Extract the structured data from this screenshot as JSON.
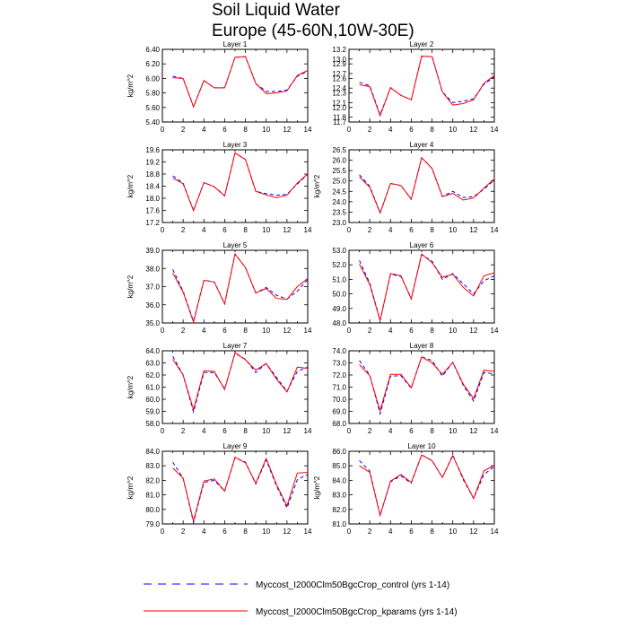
{
  "figure": {
    "title_line1": "Soil Liquid Water",
    "title_line2": "Europe (45-60N,10W-30E)"
  },
  "legend": [
    {
      "label": "Myccost_I2000Clm50BgcCrop_control (yrs 1-14)",
      "color": "#0000ff",
      "style": "dashed"
    },
    {
      "label": "Myccost_I2000Clm50BgcCrop_kparams (yrs 1-14)",
      "color": "#ff0000",
      "style": "solid"
    }
  ],
  "chart_data": [
    {
      "type": "line",
      "title": "Layer 1",
      "ylabel": "kg/m^2",
      "xlim": [
        0,
        14
      ],
      "ylim": [
        5.4,
        6.4
      ],
      "xticks": [
        "0",
        "2",
        "4",
        "6",
        "8",
        "10",
        "12",
        "14"
      ],
      "yticks": [
        "5.40",
        "5.60",
        "5.80",
        "6.00",
        "6.20",
        "6.40"
      ],
      "x": [
        1,
        2,
        3,
        4,
        5,
        6,
        7,
        8,
        9,
        10,
        11,
        12,
        13,
        14
      ],
      "series": [
        {
          "name": "Myccost_I2000Clm50BgcCrop_control (yrs 1-14)",
          "color": "#0000ff",
          "dash": true,
          "values": [
            6.03,
            6.0,
            5.61,
            5.97,
            5.87,
            5.87,
            6.29,
            6.3,
            5.93,
            5.82,
            5.82,
            5.84,
            6.03,
            6.1
          ]
        },
        {
          "name": "Myccost_I2000Clm50BgcCrop_kparams (yrs 1-14)",
          "color": "#ff0000",
          "dash": false,
          "values": [
            6.01,
            6.0,
            5.61,
            5.97,
            5.87,
            5.87,
            6.29,
            6.3,
            5.93,
            5.79,
            5.8,
            5.83,
            6.04,
            6.11
          ]
        }
      ]
    },
    {
      "type": "line",
      "title": "Layer 2",
      "ylabel": "",
      "xlim": [
        0,
        14
      ],
      "ylim": [
        11.7,
        13.2
      ],
      "xticks": [
        "0",
        "2",
        "4",
        "6",
        "8",
        "10",
        "12",
        "14"
      ],
      "yticks": [
        "11.7",
        "11.8",
        "12.0",
        "12.1",
        "12.3",
        "12.4",
        "12.6",
        "12.7",
        "12.9",
        "13.0",
        "13.2"
      ],
      "x": [
        1,
        2,
        3,
        4,
        5,
        6,
        7,
        8,
        9,
        10,
        11,
        12,
        13,
        14
      ],
      "series": [
        {
          "name": "Myccost_I2000Clm50BgcCrop_control (yrs 1-14)",
          "color": "#0000ff",
          "dash": true,
          "values": [
            12.52,
            12.45,
            11.85,
            12.41,
            12.25,
            12.16,
            13.06,
            13.05,
            12.32,
            12.1,
            12.13,
            12.18,
            12.48,
            12.63
          ]
        },
        {
          "name": "Myccost_I2000Clm50BgcCrop_kparams (yrs 1-14)",
          "color": "#ff0000",
          "dash": false,
          "values": [
            12.47,
            12.43,
            11.83,
            12.41,
            12.25,
            12.16,
            13.06,
            13.05,
            12.32,
            12.05,
            12.08,
            12.16,
            12.5,
            12.66
          ]
        }
      ]
    },
    {
      "type": "line",
      "title": "Layer 3",
      "ylabel": "kg/m^2",
      "xlim": [
        0,
        14
      ],
      "ylim": [
        17.2,
        19.6
      ],
      "xticks": [
        "0",
        "2",
        "4",
        "6",
        "8",
        "10",
        "12",
        "14"
      ],
      "yticks": [
        "17.2",
        "17.6",
        "18.0",
        "18.4",
        "18.8",
        "19.2",
        "19.6"
      ],
      "x": [
        1,
        2,
        3,
        4,
        5,
        6,
        7,
        8,
        9,
        10,
        11,
        12,
        13,
        14
      ],
      "series": [
        {
          "name": "Myccost_I2000Clm50BgcCrop_control (yrs 1-14)",
          "color": "#0000ff",
          "dash": true,
          "values": [
            18.74,
            18.5,
            17.6,
            18.52,
            18.38,
            18.08,
            19.5,
            19.28,
            18.23,
            18.15,
            18.1,
            18.13,
            18.47,
            18.79
          ]
        },
        {
          "name": "Myccost_I2000Clm50BgcCrop_kparams (yrs 1-14)",
          "color": "#ff0000",
          "dash": false,
          "values": [
            18.67,
            18.48,
            17.59,
            18.52,
            18.38,
            18.08,
            19.5,
            19.28,
            18.23,
            18.11,
            18.02,
            18.1,
            18.5,
            18.81
          ]
        }
      ]
    },
    {
      "type": "line",
      "title": "Layer 4",
      "ylabel": "kg/m^2",
      "xlim": [
        0,
        14
      ],
      "ylim": [
        23.0,
        26.5
      ],
      "xticks": [
        "0",
        "2",
        "4",
        "6",
        "8",
        "10",
        "12",
        "14"
      ],
      "yticks": [
        "23.0",
        "23.5",
        "24.0",
        "24.5",
        "25.0",
        "25.5",
        "26.0",
        "26.5"
      ],
      "x": [
        1,
        2,
        3,
        4,
        5,
        6,
        7,
        8,
        9,
        10,
        11,
        12,
        13,
        14
      ],
      "series": [
        {
          "name": "Myccost_I2000Clm50BgcCrop_control (yrs 1-14)",
          "color": "#0000ff",
          "dash": true,
          "values": [
            25.3,
            24.75,
            23.47,
            24.88,
            24.78,
            24.12,
            26.12,
            25.6,
            24.25,
            24.5,
            24.2,
            24.25,
            24.6,
            25.05
          ]
        },
        {
          "name": "Myccost_I2000Clm50BgcCrop_kparams (yrs 1-14)",
          "color": "#ff0000",
          "dash": false,
          "values": [
            25.2,
            24.7,
            23.46,
            24.88,
            24.78,
            24.12,
            26.12,
            25.6,
            24.25,
            24.4,
            24.08,
            24.18,
            24.65,
            25.1
          ]
        }
      ]
    },
    {
      "type": "line",
      "title": "Layer 5",
      "ylabel": "kg/m^2",
      "xlim": [
        0,
        14
      ],
      "ylim": [
        35.0,
        39.0
      ],
      "xticks": [
        "0",
        "2",
        "4",
        "6",
        "8",
        "10",
        "12",
        "14"
      ],
      "yticks": [
        "35.0",
        "36.0",
        "37.0",
        "38.0",
        "39.0"
      ],
      "x": [
        1,
        2,
        3,
        4,
        5,
        6,
        7,
        8,
        9,
        10,
        11,
        12,
        13,
        14
      ],
      "series": [
        {
          "name": "Myccost_I2000Clm50BgcCrop_control (yrs 1-14)",
          "color": "#0000ff",
          "dash": true,
          "values": [
            37.95,
            36.75,
            35.1,
            37.35,
            37.25,
            36.05,
            38.8,
            38.05,
            36.65,
            36.95,
            36.52,
            36.32,
            36.75,
            37.4
          ]
        },
        {
          "name": "Myccost_I2000Clm50BgcCrop_kparams (yrs 1-14)",
          "color": "#ff0000",
          "dash": false,
          "values": [
            37.75,
            36.7,
            35.05,
            37.35,
            37.25,
            36.05,
            38.8,
            38.05,
            36.65,
            36.9,
            36.35,
            36.3,
            37.0,
            37.45
          ]
        }
      ]
    },
    {
      "type": "line",
      "title": "Layer 6",
      "ylabel": "",
      "xlim": [
        0,
        14
      ],
      "ylim": [
        48.0,
        53.0
      ],
      "xticks": [
        "0",
        "2",
        "4",
        "6",
        "8",
        "10",
        "12",
        "14"
      ],
      "yticks": [
        "48.0",
        "49.0",
        "50.0",
        "51.0",
        "52.0",
        "53.0"
      ],
      "x": [
        1,
        2,
        3,
        4,
        5,
        6,
        7,
        8,
        9,
        10,
        11,
        12,
        13,
        14
      ],
      "series": [
        {
          "name": "Myccost_I2000Clm50BgcCrop_control (yrs 1-14)",
          "color": "#0000ff",
          "dash": true,
          "values": [
            52.3,
            50.75,
            48.2,
            51.35,
            51.2,
            49.7,
            52.7,
            52.25,
            51.0,
            51.4,
            50.7,
            50.0,
            50.9,
            51.25
          ]
        },
        {
          "name": "Myccost_I2000Clm50BgcCrop_kparams (yrs 1-14)",
          "color": "#ff0000",
          "dash": false,
          "values": [
            52.05,
            50.65,
            48.15,
            51.4,
            51.25,
            49.65,
            52.75,
            52.15,
            51.15,
            51.35,
            50.45,
            49.85,
            51.25,
            51.45
          ]
        }
      ]
    },
    {
      "type": "line",
      "title": "Layer 7",
      "ylabel": "kg/m^2",
      "xlim": [
        0,
        14
      ],
      "ylim": [
        58.0,
        64.0
      ],
      "xticks": [
        "0",
        "2",
        "4",
        "6",
        "8",
        "10",
        "12",
        "14"
      ],
      "yticks": [
        "58.0",
        "59.0",
        "60.0",
        "61.0",
        "62.0",
        "63.0",
        "64.0"
      ],
      "x": [
        1,
        2,
        3,
        4,
        5,
        6,
        7,
        8,
        9,
        10,
        11,
        12,
        13,
        14
      ],
      "series": [
        {
          "name": "Myccost_I2000Clm50BgcCrop_control (yrs 1-14)",
          "color": "#0000ff",
          "dash": true,
          "values": [
            63.55,
            62.0,
            58.95,
            62.2,
            62.2,
            60.85,
            63.8,
            63.3,
            62.2,
            62.95,
            61.8,
            60.65,
            62.3,
            62.65
          ]
        },
        {
          "name": "Myccost_I2000Clm50BgcCrop_kparams (yrs 1-14)",
          "color": "#ff0000",
          "dash": false,
          "values": [
            63.3,
            62.0,
            59.15,
            62.35,
            62.3,
            60.8,
            63.85,
            63.25,
            62.4,
            62.95,
            61.65,
            60.6,
            62.65,
            62.55
          ]
        }
      ]
    },
    {
      "type": "line",
      "title": "Layer 8",
      "ylabel": "",
      "xlim": [
        0,
        14
      ],
      "ylim": [
        68.0,
        74.0
      ],
      "xticks": [
        "0",
        "2",
        "4",
        "6",
        "8",
        "10",
        "12",
        "14"
      ],
      "yticks": [
        "68.0",
        "69.0",
        "70.0",
        "71.0",
        "72.0",
        "73.0",
        "74.0"
      ],
      "x": [
        1,
        2,
        3,
        4,
        5,
        6,
        7,
        8,
        9,
        10,
        11,
        12,
        13,
        14
      ],
      "series": [
        {
          "name": "Myccost_I2000Clm50BgcCrop_control (yrs 1-14)",
          "color": "#0000ff",
          "dash": true,
          "values": [
            73.2,
            72.0,
            68.8,
            71.9,
            71.95,
            70.9,
            73.5,
            73.2,
            71.9,
            73.05,
            71.15,
            69.85,
            72.2,
            72.1
          ]
        },
        {
          "name": "Myccost_I2000Clm50BgcCrop_kparams (yrs 1-14)",
          "color": "#ff0000",
          "dash": false,
          "values": [
            72.85,
            71.95,
            69.05,
            72.05,
            72.05,
            70.95,
            73.5,
            73.0,
            72.05,
            73.05,
            71.25,
            70.05,
            72.4,
            72.3
          ]
        }
      ]
    },
    {
      "type": "line",
      "title": "Layer 9",
      "ylabel": "kg/m^2",
      "xlim": [
        0,
        14
      ],
      "ylim": [
        79.0,
        84.0
      ],
      "xticks": [
        "0",
        "2",
        "4",
        "6",
        "8",
        "10",
        "12",
        "14"
      ],
      "yticks": [
        "79.0",
        "80.0",
        "81.0",
        "82.0",
        "83.0",
        "84.0"
      ],
      "x": [
        1,
        2,
        3,
        4,
        5,
        6,
        7,
        8,
        9,
        10,
        11,
        12,
        13,
        14
      ],
      "series": [
        {
          "name": "Myccost_I2000Clm50BgcCrop_control (yrs 1-14)",
          "color": "#0000ff",
          "dash": true,
          "values": [
            83.25,
            82.15,
            79.1,
            81.85,
            82.0,
            81.25,
            83.55,
            83.25,
            81.75,
            83.4,
            81.6,
            80.1,
            82.05,
            82.4
          ]
        },
        {
          "name": "Myccost_I2000Clm50BgcCrop_kparams (yrs 1-14)",
          "color": "#ff0000",
          "dash": false,
          "values": [
            82.85,
            82.15,
            79.2,
            81.95,
            82.1,
            81.25,
            83.6,
            83.2,
            81.8,
            83.5,
            81.7,
            80.25,
            82.5,
            82.55
          ]
        }
      ]
    },
    {
      "type": "line",
      "title": "Layer 10",
      "ylabel": "kg/m^2",
      "xlim": [
        0,
        14
      ],
      "ylim": [
        81.0,
        86.0
      ],
      "xticks": [
        "0",
        "2",
        "4",
        "6",
        "8",
        "10",
        "12",
        "14"
      ],
      "yticks": [
        "81.0",
        "82.0",
        "83.0",
        "84.0",
        "85.0",
        "86.0"
      ],
      "x": [
        1,
        2,
        3,
        4,
        5,
        6,
        7,
        8,
        9,
        10,
        11,
        12,
        13,
        14
      ],
      "series": [
        {
          "name": "Myccost_I2000Clm50BgcCrop_control (yrs 1-14)",
          "color": "#0000ff",
          "dash": true,
          "values": [
            85.35,
            84.65,
            81.6,
            83.9,
            84.3,
            83.8,
            85.75,
            85.35,
            84.2,
            85.75,
            84.05,
            82.75,
            84.4,
            84.95
          ]
        },
        {
          "name": "Myccost_I2000Clm50BgcCrop_kparams (yrs 1-14)",
          "color": "#ff0000",
          "dash": false,
          "values": [
            85.0,
            84.55,
            81.6,
            83.95,
            84.4,
            83.85,
            85.75,
            85.35,
            84.2,
            85.7,
            84.15,
            82.75,
            84.65,
            85.05
          ]
        }
      ]
    }
  ]
}
